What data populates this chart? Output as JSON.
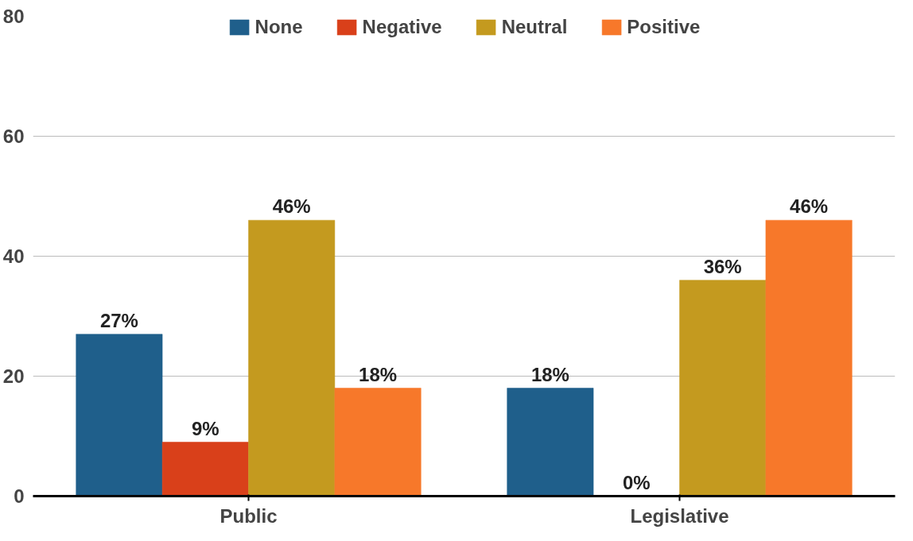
{
  "chart_data": {
    "type": "bar",
    "categories": [
      "Public",
      "Legislative"
    ],
    "series": [
      {
        "name": "None",
        "color": "#1f5f8b",
        "values": [
          27,
          18
        ],
        "value_labels": [
          "27%",
          "18%"
        ]
      },
      {
        "name": "Negative",
        "color": "#d9401a",
        "values": [
          9,
          0
        ],
        "value_labels": [
          "9%",
          "0%"
        ]
      },
      {
        "name": "Neutral",
        "color": "#c49a1f",
        "values": [
          46,
          36
        ],
        "value_labels": [
          "46%",
          "36%"
        ]
      },
      {
        "name": "Positive",
        "color": "#f7782a",
        "values": [
          18,
          46
        ],
        "value_labels": [
          "18%",
          "46%"
        ]
      }
    ],
    "ylim": [
      0,
      80
    ],
    "yticks": [
      0,
      20,
      40,
      60,
      80
    ],
    "grid": "y",
    "legend": "top"
  }
}
